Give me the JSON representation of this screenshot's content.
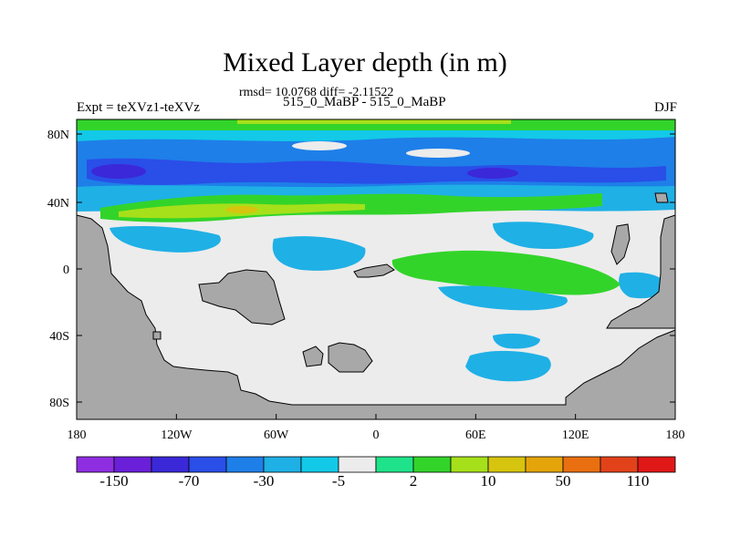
{
  "title": "Mixed Layer depth (in m)",
  "subtitle_stats": "rmsd= 10.0768 diff= -2.11522",
  "subtitle_cases": "515_0_MaBP - 515_0_MaBP",
  "left_label": "Expt = teXVz1-teXVz",
  "right_label": "DJF",
  "lat_ticks": [
    "80N",
    "40N",
    "0",
    "40S",
    "80S"
  ],
  "lon_ticks": [
    "180",
    "120W",
    "60W",
    "0",
    "60E",
    "120E",
    "180"
  ],
  "colorbar": {
    "colors": [
      "#8f2ee0",
      "#6a1fd8",
      "#3b28d8",
      "#2a4ee8",
      "#1e7fe8",
      "#1fb0e6",
      "#13c9e8",
      "#ececec",
      "#1fe38a",
      "#33d42a",
      "#a6e01a",
      "#d6c40e",
      "#e5a40a",
      "#ea6f10",
      "#e2421a",
      "#e01818"
    ],
    "labels": [
      "-150",
      "-70",
      "-30",
      "-5",
      "2",
      "10",
      "50",
      "110"
    ]
  },
  "colors": {
    "land": "#a8a8a8",
    "background": "#ececec"
  }
}
